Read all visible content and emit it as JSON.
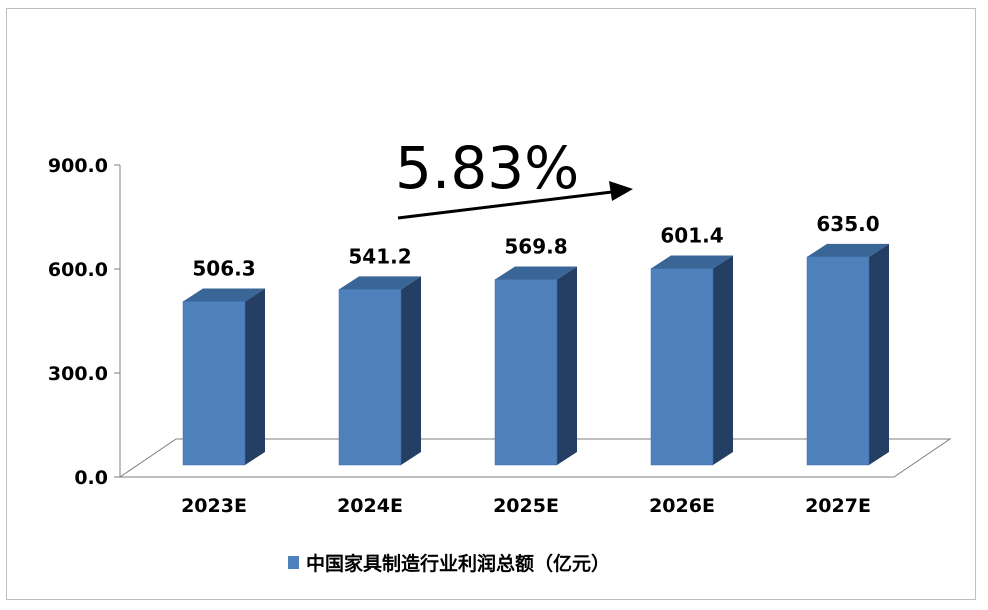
{
  "chart_data": {
    "type": "bar",
    "categories": [
      "2023E",
      "2024E",
      "2025E",
      "2026E",
      "2027E"
    ],
    "series": [
      {
        "name": "中国家具制造行业利润总额（亿元）",
        "values": [
          506.3,
          541.2,
          569.8,
          601.4,
          635.0
        ]
      }
    ],
    "value_labels": [
      "506.3",
      "541.2",
      "569.8",
      "601.4",
      "635.0"
    ],
    "yticks": [
      "0.0",
      "300.0",
      "600.0",
      "900.0"
    ],
    "ytick_values": [
      0,
      300,
      600,
      900
    ],
    "ylim": [
      0,
      900
    ],
    "grid": false,
    "legend_position": "bottom",
    "annotation": "5.83%",
    "colors": {
      "bar_front": "#4f81bd",
      "bar_side": "#253f64",
      "bar_top": "#3a6597",
      "floor": "#ffffff",
      "axis": "#7f7f7f"
    }
  }
}
